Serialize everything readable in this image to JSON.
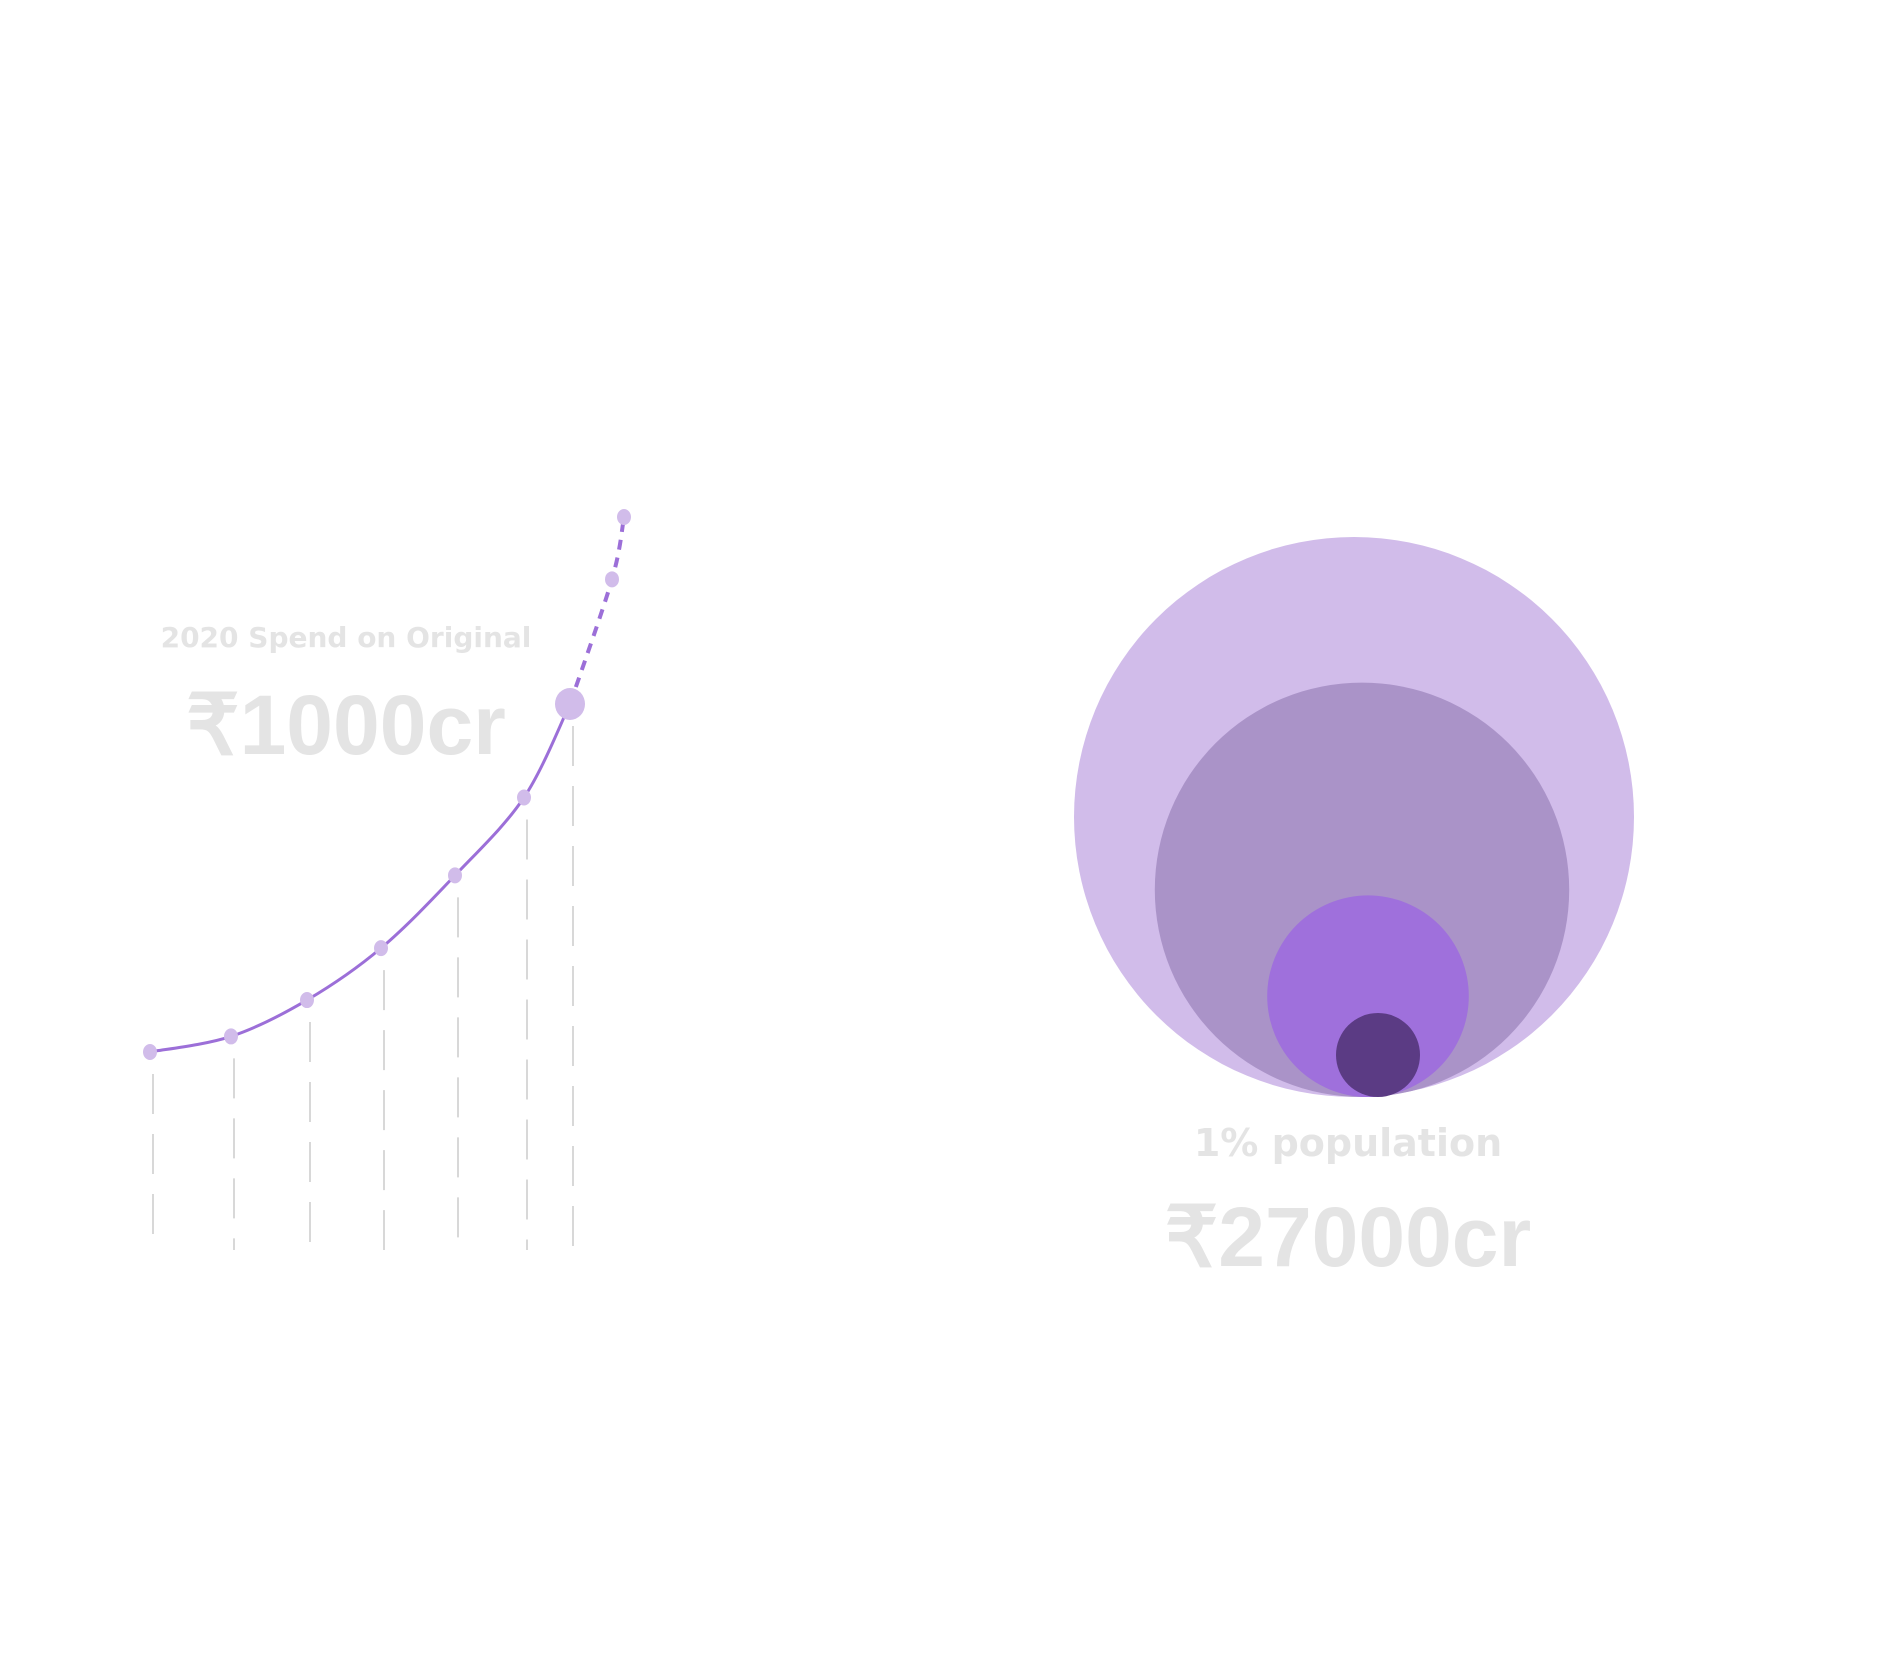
{
  "colors": {
    "curve": "#9c6fd8",
    "point": "#d1bcea",
    "drop_line": "#d8d8d8",
    "label_text": "#e4e4e4",
    "circle_outer": "#d1bcea",
    "circle_second": "#aa93c8",
    "circle_third": "#9f70dc",
    "circle_inner": "#5b3b84"
  },
  "left_panel": {
    "label": "2020 Spend on Original",
    "value": "₹1000cr"
  },
  "right_panel": {
    "label": "1% population",
    "value": "₹27000cr"
  },
  "chart_data": [
    {
      "type": "line",
      "x": [
        1,
        2,
        3,
        4,
        5,
        6,
        7,
        8,
        9
      ],
      "series": [
        {
          "values": [
            1.0,
            1.3,
            2.0,
            3.0,
            4.4,
            5.9,
            7.7,
            10.1,
            11.3
          ],
          "projected_from_index": 6,
          "highlighted_index": 6
        }
      ],
      "ylim": [
        0,
        12
      ],
      "grid": false
    },
    {
      "type": "bubble",
      "layout": "nested, bottom-aligned",
      "circles": [
        {
          "relative_size": 1.0,
          "color": "#d1bcea"
        },
        {
          "relative_size": 0.74,
          "color": "#aa93c8"
        },
        {
          "relative_size": 0.36,
          "color": "#9f70dc"
        },
        {
          "relative_size": 0.15,
          "color": "#5b3b84"
        }
      ]
    }
  ]
}
